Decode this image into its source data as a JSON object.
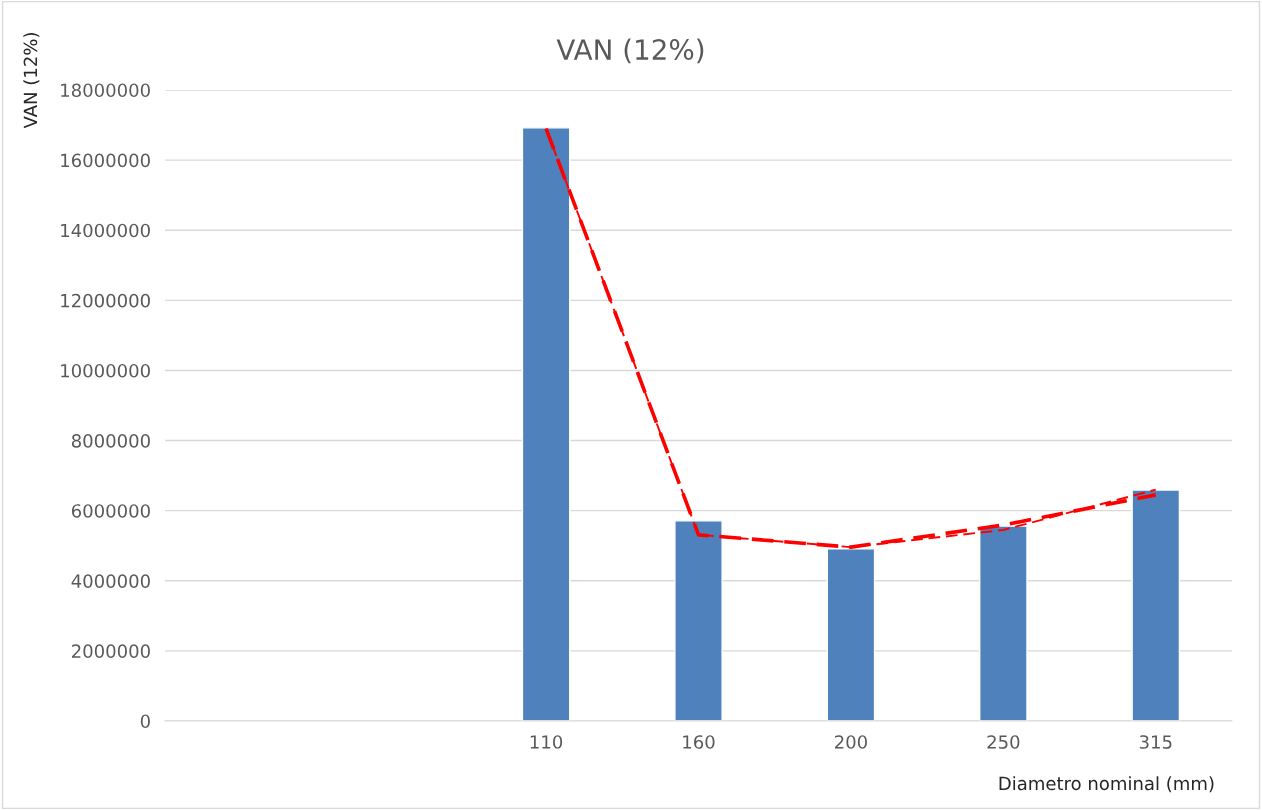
{
  "chart_data": {
    "type": "bar",
    "title": "VAN (12%)",
    "xlabel": "Diametro nominal (mm)",
    "ylabel": "VAN (12%)",
    "categories": [
      null,
      null,
      "110",
      "160",
      "200",
      "250",
      "315"
    ],
    "series": [
      {
        "color": "#4f81bd",
        "values": [
          null,
          null,
          16920000,
          5710000,
          4910000,
          5560000,
          6590000
        ]
      },
      {
        "type": "line",
        "color": "#ff0000",
        "line_style": "dashed",
        "values": [
          null,
          null,
          16900000,
          5310000,
          4960000,
          5590000,
          6450000
        ]
      },
      {
        "type": "line",
        "color": "#ff0000",
        "line_style": "dashed",
        "values": [
          null,
          null,
          16900000,
          5310000,
          4960000,
          5450000,
          6600000
        ]
      }
    ],
    "ylim": [
      0,
      18000000
    ],
    "yticks": [
      0,
      2000000,
      4000000,
      6000000,
      8000000,
      10000000,
      12000000,
      14000000,
      16000000,
      18000000
    ],
    "grid": "y"
  }
}
